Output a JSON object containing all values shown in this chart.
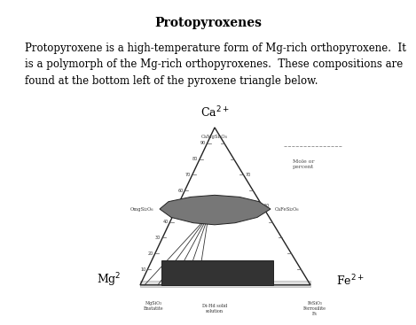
{
  "title": "Protopyroxenes",
  "body_text": "Protopyroxene is a high-temperature form of Mg-rich orthopyroxene.  It\nis a polymorph of the Mg-rich orthopyroxenes.  These compositions are\nfound at the bottom left of the pyroxene triangle below.",
  "ca_label": "Ca$^{2+}$",
  "mg_label": "Mg$^{2}$",
  "fe_label": "Fe$^{2+}$",
  "mole_pct_label": "Mole or\npercent",
  "dashed_label": "",
  "apex_mineral": "CaMgSi₂O₆",
  "left_mineral": "OmgSi₂O₆",
  "right_mineral": "CaFeSi₂O₆",
  "bottom_left": "MgSiO₃\nEnstatite",
  "bottom_center": "Di-Hd solid\nsolution",
  "bottom_right": "FeSiO₃\nFerrosilite\nFs",
  "tick_labels": [
    "10",
    "20",
    "30",
    "40",
    "50",
    "60",
    "70",
    "80",
    "90"
  ]
}
